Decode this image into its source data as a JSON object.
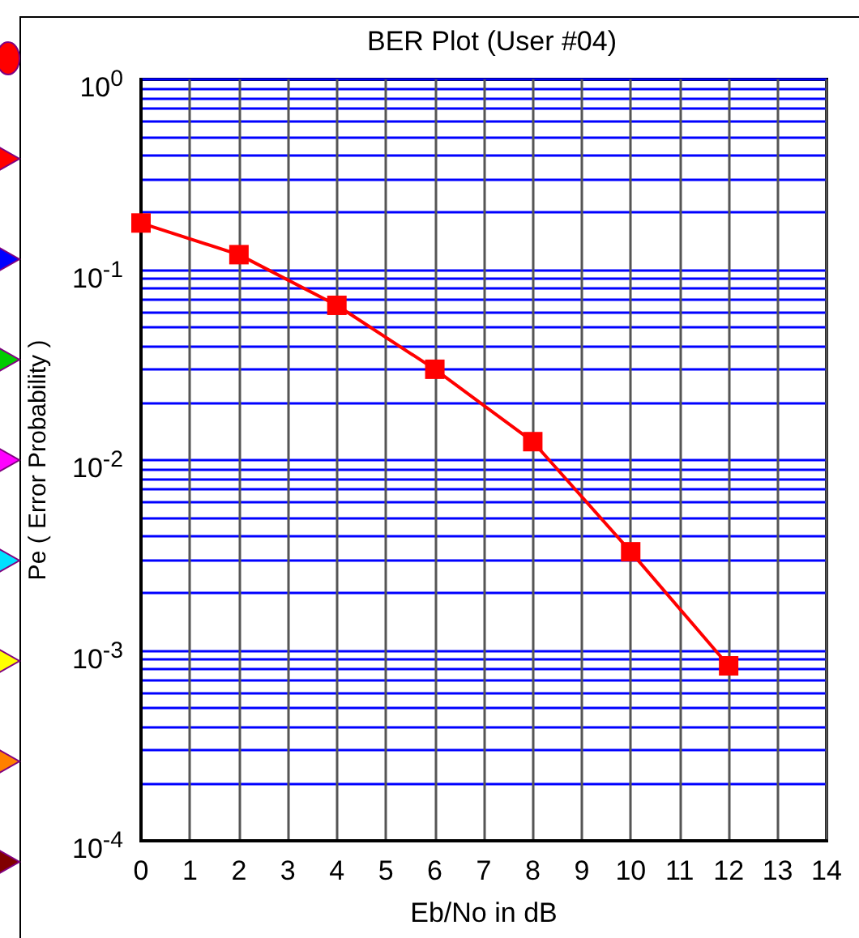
{
  "chart_data": {
    "type": "line",
    "title": "BER Plot (User #04)",
    "xlabel": "Eb/No in dB",
    "ylabel": "Pe ( Error Probability )",
    "x": [
      0,
      2,
      4,
      6,
      8,
      10,
      12
    ],
    "series": [
      {
        "color": "#ff0000",
        "values": [
          0.176,
          0.12,
          0.065,
          0.03,
          0.0125,
          0.0033,
          0.00083
        ]
      }
    ],
    "xlim": [
      0,
      14
    ],
    "xticks": [
      0,
      1,
      2,
      3,
      4,
      5,
      6,
      7,
      8,
      9,
      10,
      11,
      12,
      13,
      14
    ],
    "ylim": [
      0.0001,
      1
    ],
    "yticks": [
      {
        "value": 1,
        "label": "10$^{0}$"
      },
      {
        "value": 0.1,
        "label": "10$^{-1}$"
      },
      {
        "value": 0.01,
        "label": "10$^{-2}$"
      },
      {
        "value": 0.001,
        "label": "10$^{-3}$"
      },
      {
        "value": 0.0001,
        "label": "10$^{-4}$"
      }
    ],
    "log": "y",
    "grid": true,
    "marker": "square",
    "line_style": "solid"
  }
}
